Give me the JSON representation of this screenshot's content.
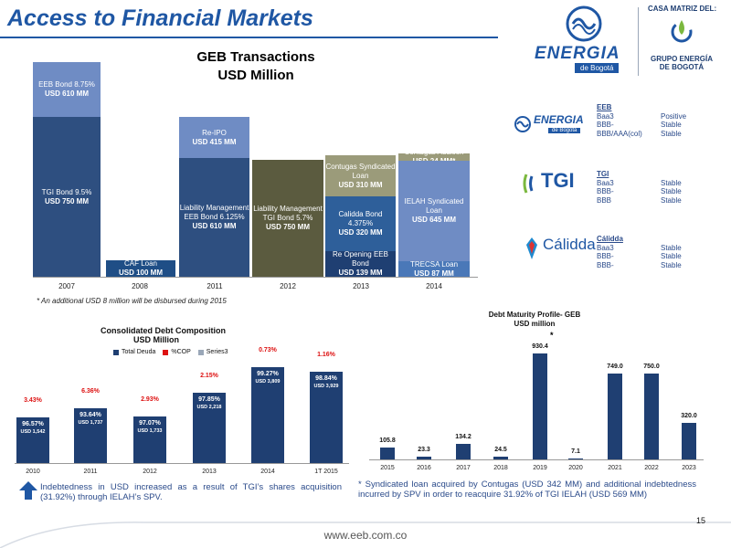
{
  "header": {
    "title": "Access to Financial Markets",
    "casa": "CASA MATRIZ DEL:",
    "grupo_line1": "GRUPO ENERGÍA",
    "grupo_line2": "DE BOGOTÁ",
    "eeb_logo_text": "ENERGIA",
    "eeb_logo_sub": "de Bogotá"
  },
  "transactions": {
    "title_line1": "GEB Transactions",
    "title_line2": "USD  Million",
    "years": [
      "2007",
      "2008",
      "2011",
      "2012",
      "2013",
      "2014"
    ],
    "bars": [
      {
        "l1": "EEB Bond 8.75%",
        "l2": "USD 610 MM",
        "color": "#6f8cc4"
      },
      {
        "l1": "TGI Bond 9.5%",
        "l2": "USD 750 MM",
        "color": "#2e4f80"
      },
      {
        "l1": "CAF Loan",
        "l2": "USD 100 MM",
        "color": "#1f4e86"
      },
      {
        "l1": "Re-IPO",
        "l2": "USD 415 MM",
        "color": "#6f8cc4"
      },
      {
        "l1": "Liability Management",
        "l2": "EEB Bond 6.125%",
        "l3": "USD 610 MM",
        "color": "#2e4f80"
      },
      {
        "l1": "Liability Management",
        "l2": "TGI Bond 5.7%",
        "l3": "USD 750 MM",
        "color": "#5b5b3f"
      },
      {
        "l1": "Contugas Syndicated",
        "l2": "Loan",
        "l3": "USD 310 MM",
        "color": "#9b9b7a"
      },
      {
        "l1": "Calidda Bond 4.375%",
        "l2": "USD 320 MM",
        "color": "#2e5f9a"
      },
      {
        "l1": "Re Opening EEB Bond",
        "l2": "USD 139 MM",
        "color": "#1f3f72"
      },
      {
        "l1": "Contugas Addition",
        "l2": "USD 24 MM*",
        "color": "#9b9b7a"
      },
      {
        "l1": "IELAH Syndicated",
        "l2": "Loan",
        "l3": "USD 645 MM",
        "color": "#6f8cc4"
      },
      {
        "l1": "TRECSA Loan",
        "l2": "USD 87 MM",
        "color": "#4a78b8"
      }
    ],
    "note": "* An additional USD 8 million will be disbursed during 2015"
  },
  "ratings": [
    {
      "name": "EEB",
      "rows": [
        [
          "Baa3",
          "Positive"
        ],
        [
          "BBB-",
          "Stable"
        ],
        [
          "BBB/AAA(col)",
          "Stable"
        ]
      ]
    },
    {
      "name": "TGI",
      "rows": [
        [
          "Baa3",
          "Stable"
        ],
        [
          "BBB-",
          "Stable"
        ],
        [
          "BBB",
          "Stable"
        ]
      ]
    },
    {
      "name": "Cálidda",
      "rows": [
        [
          "Baa3",
          "Stable"
        ],
        [
          "BBB-",
          "Stable"
        ],
        [
          "BBB-",
          "Stable"
        ]
      ]
    }
  ],
  "logos": {
    "tgi": "TGI",
    "calidda": "Cálidda"
  },
  "debt_composition": {
    "title_line1": "Consolidated Debt Composition",
    "title_line2": "USD  Million",
    "legend": [
      "Total Deuda",
      "%COP",
      "Series3"
    ],
    "periods": [
      "2010",
      "2011",
      "2012",
      "2013",
      "2014",
      "1T 2015"
    ],
    "usd_share": [
      "96.57%",
      "93.64%",
      "97.07%",
      "97.85%",
      "99.27%",
      "98.84%"
    ],
    "totals": [
      "USD 1,542",
      "USD 1,737",
      "USD 1,733",
      "USD 2,218",
      "USD 3,809",
      "USD 3,929"
    ],
    "cop_share": [
      "3.43%",
      "6.36%",
      "2.93%",
      "2.15%",
      "0.73%",
      "1.16%"
    ]
  },
  "maturity": {
    "title_line1": "Debt Maturity Profile- GEB",
    "title_line2": "USD million",
    "years": [
      "2015",
      "2016",
      "2017",
      "2018",
      "2019",
      "2020",
      "2021",
      "2022",
      "2023"
    ],
    "values": [
      "105.8",
      "23.3",
      "134.2",
      "24.5",
      "930.4",
      "7.1",
      "749.0",
      "750.0",
      "320.0"
    ],
    "asterisk": "*"
  },
  "notes": {
    "left": "Indebtedness in USD increased  as a result of TGI’s shares acquisition (31.92%) through IELAH’s SPV.",
    "right": "* Syndicated loan acquired by Contugas (USD 342 MM) and additional indebtedness incurred by SPV in order to reacquire 31.92% of TGI IELAH (USD 569 MM)"
  },
  "footer": {
    "url": "www.eeb.com.co",
    "page": "15"
  },
  "chart_data": [
    {
      "type": "bar",
      "title": "GEB Transactions USD  Million",
      "categories": [
        "2007",
        "2008",
        "2011",
        "2012",
        "2013",
        "2014"
      ],
      "series": [
        {
          "name": "EEB Bond 8.75%",
          "values": [
            610,
            0,
            0,
            0,
            0,
            0
          ]
        },
        {
          "name": "TGI Bond 9.5%",
          "values": [
            750,
            0,
            0,
            0,
            0,
            0
          ]
        },
        {
          "name": "CAF Loan",
          "values": [
            0,
            100,
            0,
            0,
            0,
            0
          ]
        },
        {
          "name": "Re-IPO",
          "values": [
            0,
            0,
            415,
            0,
            0,
            0
          ]
        },
        {
          "name": "Liability Management EEB Bond 6.125%",
          "values": [
            0,
            0,
            610,
            0,
            0,
            0
          ]
        },
        {
          "name": "Liability Management TGI Bond 5.7%",
          "values": [
            0,
            0,
            0,
            750,
            0,
            0
          ]
        },
        {
          "name": "Contugas Syndicated Loan",
          "values": [
            0,
            0,
            0,
            0,
            310,
            0
          ]
        },
        {
          "name": "Calidda Bond 4.375%",
          "values": [
            0,
            0,
            0,
            0,
            320,
            0
          ]
        },
        {
          "name": "Re Opening EEB Bond",
          "values": [
            0,
            0,
            0,
            0,
            139,
            0
          ]
        },
        {
          "name": "Contugas Addition",
          "values": [
            0,
            0,
            0,
            0,
            0,
            24
          ]
        },
        {
          "name": "IELAH Syndicated Loan",
          "values": [
            0,
            0,
            0,
            0,
            0,
            645
          ]
        },
        {
          "name": "TRECSA Loan",
          "values": [
            0,
            0,
            0,
            0,
            0,
            87
          ]
        }
      ]
    },
    {
      "type": "bar",
      "title": "Consolidated Debt Composition USD  Million",
      "categories": [
        "2010",
        "2011",
        "2012",
        "2013",
        "2014",
        "1T 2015"
      ],
      "series": [
        {
          "name": "Total Deuda",
          "values": [
            1542,
            1737,
            1733,
            2218,
            3809,
            3929
          ]
        },
        {
          "name": "%COP",
          "values": [
            3.43,
            6.36,
            2.93,
            2.15,
            0.73,
            1.16
          ]
        }
      ]
    },
    {
      "type": "bar",
      "title": "Debt Maturity Profile- GEB USD million",
      "categories": [
        "2015",
        "2016",
        "2017",
        "2018",
        "2019",
        "2020",
        "2021",
        "2022",
        "2023"
      ],
      "series": [
        {
          "values": [
            105.8,
            23.3,
            134.2,
            24.5,
            930.4,
            7.1,
            749.0,
            750.0,
            320.0
          ]
        }
      ]
    }
  ]
}
